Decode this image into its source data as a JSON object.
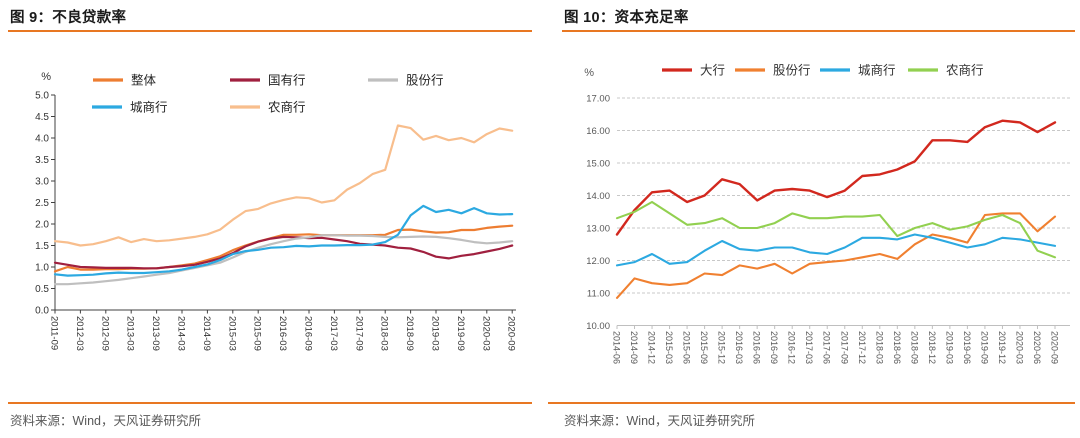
{
  "accent_color": "#E87722",
  "panels": [
    {
      "title": "图 9：不良贷款率",
      "source": "资料来源：Wind，天风证券研究所"
    },
    {
      "title": "图 10：资本充足率",
      "source": "资料来源：Wind，天风证券研究所"
    }
  ],
  "chart_data": [
    {
      "type": "line",
      "title": "图 9：不良贷款率",
      "ylabel": "%",
      "ylim": [
        0.0,
        5.0
      ],
      "ytick_step": 0.5,
      "ytick_decimals": 1,
      "x_labels_shown_every": 2,
      "grid": false,
      "legend_position": "top",
      "categories": [
        "2011-09",
        "2011-12",
        "2012-03",
        "2012-06",
        "2012-09",
        "2012-12",
        "2013-03",
        "2013-06",
        "2013-09",
        "2013-12",
        "2014-03",
        "2014-06",
        "2014-09",
        "2014-12",
        "2015-03",
        "2015-06",
        "2015-09",
        "2015-12",
        "2016-03",
        "2016-06",
        "2016-09",
        "2016-12",
        "2017-03",
        "2017-06",
        "2017-09",
        "2017-12",
        "2018-03",
        "2018-06",
        "2018-09",
        "2018-12",
        "2019-03",
        "2019-06",
        "2019-09",
        "2019-12",
        "2020-03",
        "2020-06",
        "2020-09"
      ],
      "series": [
        {
          "name": "整体",
          "color": "#ED7D31",
          "values": [
            0.9,
            1.0,
            0.94,
            0.94,
            0.95,
            0.95,
            0.96,
            0.96,
            0.97,
            1.0,
            1.04,
            1.08,
            1.16,
            1.25,
            1.39,
            1.5,
            1.59,
            1.67,
            1.75,
            1.75,
            1.76,
            1.74,
            1.74,
            1.74,
            1.74,
            1.74,
            1.75,
            1.86,
            1.87,
            1.83,
            1.8,
            1.81,
            1.86,
            1.86,
            1.91,
            1.94,
            1.96
          ]
        },
        {
          "name": "国有行",
          "color": "#A0203F",
          "values": [
            1.1,
            1.05,
            1.0,
            0.99,
            0.98,
            0.98,
            0.98,
            0.97,
            0.97,
            1.0,
            1.02,
            1.05,
            1.12,
            1.2,
            1.32,
            1.48,
            1.59,
            1.66,
            1.7,
            1.69,
            1.67,
            1.68,
            1.64,
            1.6,
            1.54,
            1.52,
            1.5,
            1.45,
            1.43,
            1.35,
            1.24,
            1.2,
            1.26,
            1.3,
            1.36,
            1.42,
            1.5
          ]
        },
        {
          "name": "股份行",
          "color": "#BFBFBF",
          "values": [
            0.6,
            0.6,
            0.62,
            0.64,
            0.67,
            0.7,
            0.74,
            0.78,
            0.82,
            0.86,
            0.92,
            0.98,
            1.04,
            1.1,
            1.22,
            1.35,
            1.45,
            1.53,
            1.6,
            1.66,
            1.69,
            1.74,
            1.74,
            1.73,
            1.73,
            1.72,
            1.7,
            1.69,
            1.7,
            1.71,
            1.7,
            1.67,
            1.63,
            1.58,
            1.55,
            1.57,
            1.6
          ]
        },
        {
          "name": "城商行",
          "color": "#2CA9E1",
          "values": [
            0.83,
            0.8,
            0.81,
            0.82,
            0.85,
            0.87,
            0.86,
            0.86,
            0.88,
            0.9,
            0.94,
            1.0,
            1.06,
            1.16,
            1.3,
            1.37,
            1.4,
            1.45,
            1.46,
            1.49,
            1.48,
            1.5,
            1.5,
            1.51,
            1.51,
            1.52,
            1.58,
            1.75,
            2.2,
            2.42,
            2.28,
            2.33,
            2.25,
            2.37,
            2.25,
            2.22,
            2.23
          ]
        },
        {
          "name": "农商行",
          "color": "#F8BE8D",
          "values": [
            1.6,
            1.57,
            1.5,
            1.53,
            1.6,
            1.69,
            1.58,
            1.65,
            1.6,
            1.62,
            1.66,
            1.7,
            1.76,
            1.87,
            2.1,
            2.3,
            2.35,
            2.48,
            2.56,
            2.62,
            2.6,
            2.5,
            2.55,
            2.8,
            2.95,
            3.16,
            3.26,
            4.29,
            4.23,
            3.96,
            4.05,
            3.95,
            4.0,
            3.9,
            4.09,
            4.22,
            4.17
          ]
        }
      ]
    },
    {
      "type": "line",
      "title": "图 10：资本充足率",
      "ylabel": "%",
      "ylim": [
        10.0,
        17.0
      ],
      "ytick_step": 1.0,
      "ytick_decimals": 2,
      "x_labels_shown_every": 1,
      "grid": true,
      "legend_position": "top",
      "categories": [
        "2014-06",
        "2014-09",
        "2014-12",
        "2015-03",
        "2015-06",
        "2015-09",
        "2015-12",
        "2016-03",
        "2016-06",
        "2016-09",
        "2016-12",
        "2017-03",
        "2017-06",
        "2017-09",
        "2017-12",
        "2018-03",
        "2018-06",
        "2018-09",
        "2018-12",
        "2019-03",
        "2019-06",
        "2019-09",
        "2019-12",
        "2020-03",
        "2020-06",
        "2020-09"
      ],
      "series": [
        {
          "name": "大行",
          "color": "#D2281E",
          "values": [
            12.8,
            13.55,
            14.1,
            14.15,
            13.8,
            14.0,
            14.5,
            14.35,
            13.85,
            14.15,
            14.2,
            14.15,
            13.95,
            14.15,
            14.6,
            14.65,
            14.8,
            15.05,
            15.7,
            15.7,
            15.65,
            16.1,
            16.3,
            16.25,
            15.95,
            16.25
          ]
        },
        {
          "name": "股份行",
          "color": "#F08030",
          "values": [
            10.85,
            11.45,
            11.3,
            11.25,
            11.3,
            11.6,
            11.55,
            11.85,
            11.75,
            11.9,
            11.6,
            11.9,
            11.95,
            12.0,
            12.1,
            12.2,
            12.05,
            12.5,
            12.8,
            12.7,
            12.55,
            13.4,
            13.45,
            13.45,
            12.9,
            13.35
          ]
        },
        {
          "name": "城商行",
          "color": "#2CA9E1",
          "values": [
            11.85,
            11.95,
            12.2,
            11.9,
            11.95,
            12.3,
            12.6,
            12.35,
            12.3,
            12.4,
            12.4,
            12.25,
            12.2,
            12.4,
            12.7,
            12.7,
            12.65,
            12.8,
            12.7,
            12.55,
            12.4,
            12.5,
            12.7,
            12.65,
            12.55,
            12.45
          ]
        },
        {
          "name": "农商行",
          "color": "#92D050",
          "values": [
            13.3,
            13.5,
            13.8,
            13.45,
            13.1,
            13.15,
            13.3,
            13.0,
            13.0,
            13.15,
            13.45,
            13.3,
            13.3,
            13.35,
            13.35,
            13.4,
            12.75,
            13.0,
            13.15,
            12.95,
            13.05,
            13.25,
            13.4,
            13.15,
            12.3,
            12.1
          ]
        }
      ]
    }
  ]
}
